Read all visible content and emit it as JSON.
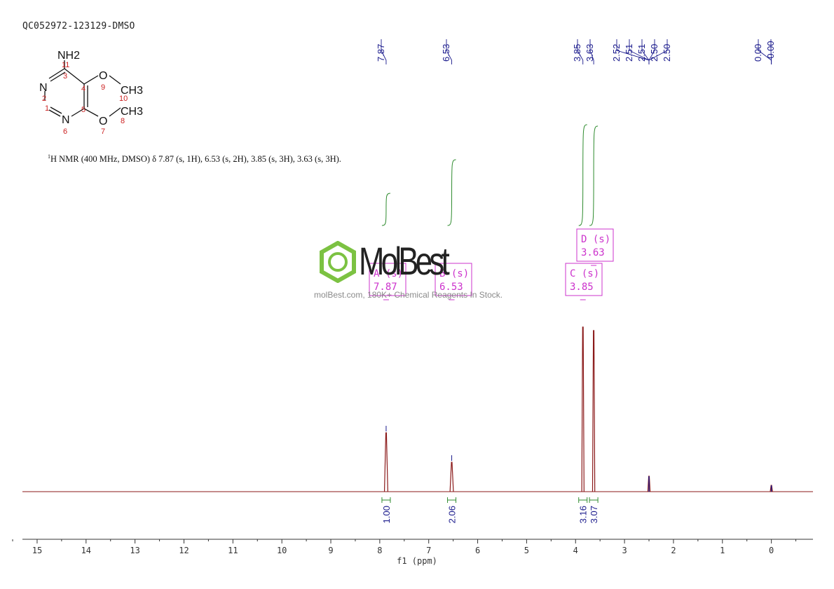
{
  "sample_id": "QC052972-123129-DMSO",
  "nmr_description": {
    "prefix": "1",
    "text": "H NMR (400 MHz, DMSO) δ 7.87 (s, 1H), 6.53 (s, 2H), 3.85 (s, 3H), 3.63 (s, 3H)."
  },
  "molecule": {
    "groups": [
      "NH2",
      "N",
      "N",
      "O",
      "O",
      "CH3",
      "CH3"
    ],
    "atom_numbers": [
      "11",
      "3",
      "2",
      "1",
      "4",
      "5",
      "6",
      "9",
      "10",
      "7",
      "8"
    ]
  },
  "watermark": {
    "brand": "MolBest",
    "tagline": "molBest.com, 180K+ Chemical Reagents In Stock."
  },
  "colors": {
    "spectrum": "#8b1a1a",
    "peak_labels": "#1a1a8c",
    "integral": "#2e8b2e",
    "multiplet_box": "#cc33cc",
    "atom_numbers": "#cc2222"
  },
  "chart_data": {
    "type": "line",
    "xlabel": "f1 (ppm)",
    "xlim": [
      15.3,
      -0.85
    ],
    "x_ticks": [
      "15",
      "14",
      "13",
      "12",
      "11",
      "10",
      "9",
      "8",
      "7",
      "6",
      "5",
      "4",
      "3",
      "2",
      "1",
      "0"
    ],
    "peak_labels": [
      "7.87",
      "6.53",
      "3.85",
      "3.63",
      "2.52",
      "2.51",
      "2.51",
      "2.50",
      "2.50",
      "0.00",
      "-0.00"
    ],
    "peaks": [
      {
        "ppm": 7.87,
        "height": 0.84
      },
      {
        "ppm": 6.53,
        "height": 0.42
      },
      {
        "ppm": 3.85,
        "height": 2.35
      },
      {
        "ppm": 3.63,
        "height": 2.3
      },
      {
        "ppm": 2.5,
        "height": 0.22
      },
      {
        "ppm": 0.0,
        "height": 0.09
      }
    ],
    "integrals": [
      {
        "ppm": 7.87,
        "value": "1.00"
      },
      {
        "ppm": 6.53,
        "value": "2.06"
      },
      {
        "ppm": 3.85,
        "value": "3.16"
      },
      {
        "ppm": 3.63,
        "value": "3.07"
      }
    ],
    "multiplets": [
      {
        "id": "A",
        "mult": "(s)",
        "shift": "7.87"
      },
      {
        "id": "B",
        "mult": "(s)",
        "shift": "6.53"
      },
      {
        "id": "C",
        "mult": "(s)",
        "shift": "3.85"
      },
      {
        "id": "D",
        "mult": "(s)",
        "shift": "3.63"
      }
    ]
  }
}
